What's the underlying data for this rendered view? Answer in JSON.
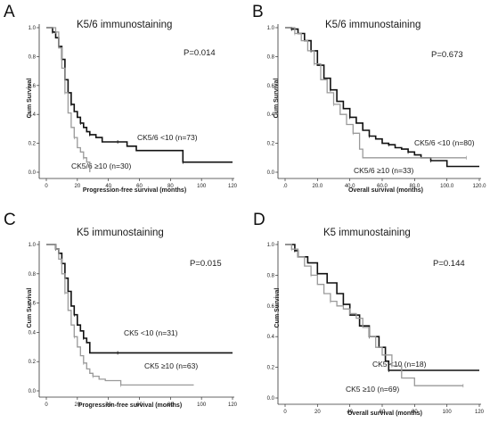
{
  "panels": [
    {
      "letter": "A",
      "title": "K5/6 immunostaining",
      "pvalue": "P=0.014",
      "ylabel": "Cum Survival",
      "xlabel": "Progression-free survival (months)"
    },
    {
      "letter": "B",
      "title": "K5/6 immunostaining",
      "pvalue": "P=0.673",
      "ylabel": "Cum Survival",
      "xlabel": "Overall survival (months)"
    },
    {
      "letter": "C",
      "title": "K5 immunostaining",
      "pvalue": "P=0.015",
      "ylabel": "Cum Survival",
      "xlabel": "Progression-free survival (months)"
    },
    {
      "letter": "D",
      "title": "K5 immunostaining",
      "pvalue": "P=0.144",
      "ylabel": "Cum Survival",
      "xlabel": "Overall survival (months)"
    }
  ],
  "chart_data": [
    {
      "type": "line",
      "title": "K5/6 immunostaining",
      "annotation": "P=0.014",
      "xlabel": "Progression-free survival (months)",
      "ylabel": "Cum Survival",
      "xlim": [
        0,
        120
      ],
      "ylim": [
        0,
        1.0
      ],
      "x_ticks": [
        "0",
        "20",
        "40",
        "60",
        "80",
        "100",
        "120"
      ],
      "y_ticks": [
        "0.0",
        "0.2",
        "0.4",
        "0.6",
        "0.8",
        "1.0"
      ],
      "series": [
        {
          "name": "CK5/6 <10 (n=73)",
          "color": "#111111",
          "x": [
            0,
            4,
            6,
            8,
            10,
            12,
            14,
            16,
            18,
            20,
            22,
            24,
            26,
            28,
            32,
            36,
            46,
            52,
            58,
            88,
            120
          ],
          "y": [
            1.0,
            0.97,
            0.93,
            0.87,
            0.78,
            0.64,
            0.55,
            0.47,
            0.42,
            0.38,
            0.34,
            0.31,
            0.28,
            0.26,
            0.24,
            0.21,
            0.21,
            0.18,
            0.15,
            0.07,
            0.07
          ]
        },
        {
          "name": "CK5/6 ≥10 (n=30)",
          "color": "#9a9a9a",
          "x": [
            0,
            6,
            8,
            10,
            12,
            14,
            16,
            18,
            20,
            22,
            24,
            26,
            28
          ],
          "y": [
            1.0,
            0.97,
            0.86,
            0.72,
            0.55,
            0.41,
            0.31,
            0.24,
            0.17,
            0.14,
            0.1,
            0.07,
            0.0
          ]
        }
      ]
    },
    {
      "type": "line",
      "title": "K5/6 immunostaining",
      "annotation": "P=0.673",
      "xlabel": "Overall survival (months)",
      "ylabel": "Cum Survival",
      "xlim": [
        0,
        120
      ],
      "ylim": [
        0,
        1.0
      ],
      "x_ticks": [
        ".0",
        "20.0",
        "40.0",
        "60.0",
        "80.0",
        "100.0",
        "120.0"
      ],
      "y_ticks": [
        "0.0",
        "0.2",
        "0.4",
        "0.6",
        "0.8",
        "1.0"
      ],
      "series": [
        {
          "name": "CK5/6 <10 (n=80)",
          "color": "#111111",
          "x": [
            0,
            4,
            8,
            12,
            16,
            20,
            24,
            28,
            32,
            36,
            40,
            44,
            48,
            52,
            56,
            60,
            64,
            68,
            72,
            76,
            80,
            84,
            90,
            100,
            120
          ],
          "y": [
            1.0,
            0.99,
            0.96,
            0.91,
            0.84,
            0.74,
            0.65,
            0.57,
            0.49,
            0.44,
            0.38,
            0.34,
            0.29,
            0.25,
            0.23,
            0.2,
            0.19,
            0.17,
            0.16,
            0.14,
            0.12,
            0.1,
            0.08,
            0.04,
            0.04
          ]
        },
        {
          "name": "CK5/6 ≥10 (n=33)",
          "color": "#9a9a9a",
          "x": [
            0,
            6,
            10,
            14,
            18,
            22,
            26,
            30,
            34,
            38,
            42,
            46,
            48,
            112
          ],
          "y": [
            1.0,
            0.96,
            0.91,
            0.84,
            0.75,
            0.64,
            0.55,
            0.47,
            0.4,
            0.33,
            0.27,
            0.16,
            0.1,
            0.1
          ]
        }
      ]
    },
    {
      "type": "line",
      "title": "K5 immunostaining",
      "annotation": "P=0.015",
      "xlabel": "Progression-free survival (months)",
      "ylabel": "Cum Survival",
      "xlim": [
        0,
        120
      ],
      "ylim": [
        0,
        1.0
      ],
      "x_ticks": [
        "0",
        "20",
        "40",
        "60",
        "80",
        "100",
        "120"
      ],
      "y_ticks": [
        "0.0",
        "0.2",
        "0.4",
        "0.6",
        "0.8",
        "1.0"
      ],
      "series": [
        {
          "name": "CK5 <10 (n=31)",
          "color": "#111111",
          "x": [
            0,
            6,
            8,
            10,
            12,
            14,
            16,
            18,
            20,
            22,
            24,
            26,
            28,
            46,
            60,
            120
          ],
          "y": [
            1.0,
            0.97,
            0.94,
            0.87,
            0.77,
            0.68,
            0.58,
            0.52,
            0.45,
            0.41,
            0.36,
            0.33,
            0.26,
            0.26,
            0.26,
            0.26
          ]
        },
        {
          "name": "CK5 ≥10 (n=63)",
          "color": "#9a9a9a",
          "x": [
            0,
            6,
            8,
            10,
            12,
            14,
            16,
            18,
            20,
            22,
            24,
            26,
            28,
            30,
            34,
            38,
            48,
            95
          ],
          "y": [
            1.0,
            0.97,
            0.9,
            0.8,
            0.67,
            0.55,
            0.45,
            0.37,
            0.3,
            0.24,
            0.19,
            0.15,
            0.12,
            0.1,
            0.08,
            0.07,
            0.04,
            0.04
          ]
        }
      ]
    },
    {
      "type": "line",
      "title": "K5 immunostaining",
      "annotation": "P=0.144",
      "xlabel": "Overall survival (months)",
      "ylabel": "Cum Survival",
      "xlim": [
        0,
        120
      ],
      "ylim": [
        0,
        1.0
      ],
      "x_ticks": [
        "0",
        "20",
        "40",
        "60",
        "80",
        "100",
        "120"
      ],
      "y_ticks": [
        "0.0",
        "0.2",
        "0.4",
        "0.6",
        "0.8",
        "1.0"
      ],
      "series": [
        {
          "name": "CK5 <10 (n=18)",
          "color": "#111111",
          "x": [
            0,
            6,
            8,
            14,
            20,
            26,
            32,
            36,
            40,
            46,
            52,
            58,
            62,
            64,
            120
          ],
          "y": [
            1.0,
            0.96,
            0.92,
            0.88,
            0.81,
            0.75,
            0.68,
            0.61,
            0.54,
            0.47,
            0.4,
            0.33,
            0.24,
            0.18,
            0.18
          ]
        },
        {
          "name": "CK5 ≥10 (n=69)",
          "color": "#9a9a9a",
          "x": [
            0,
            4,
            8,
            12,
            16,
            20,
            24,
            28,
            32,
            36,
            40,
            44,
            48,
            52,
            56,
            60,
            66,
            72,
            80,
            110
          ],
          "y": [
            1.0,
            0.97,
            0.92,
            0.86,
            0.8,
            0.74,
            0.68,
            0.63,
            0.6,
            0.58,
            0.55,
            0.52,
            0.46,
            0.4,
            0.33,
            0.28,
            0.21,
            0.13,
            0.08,
            0.08
          ]
        }
      ]
    }
  ]
}
